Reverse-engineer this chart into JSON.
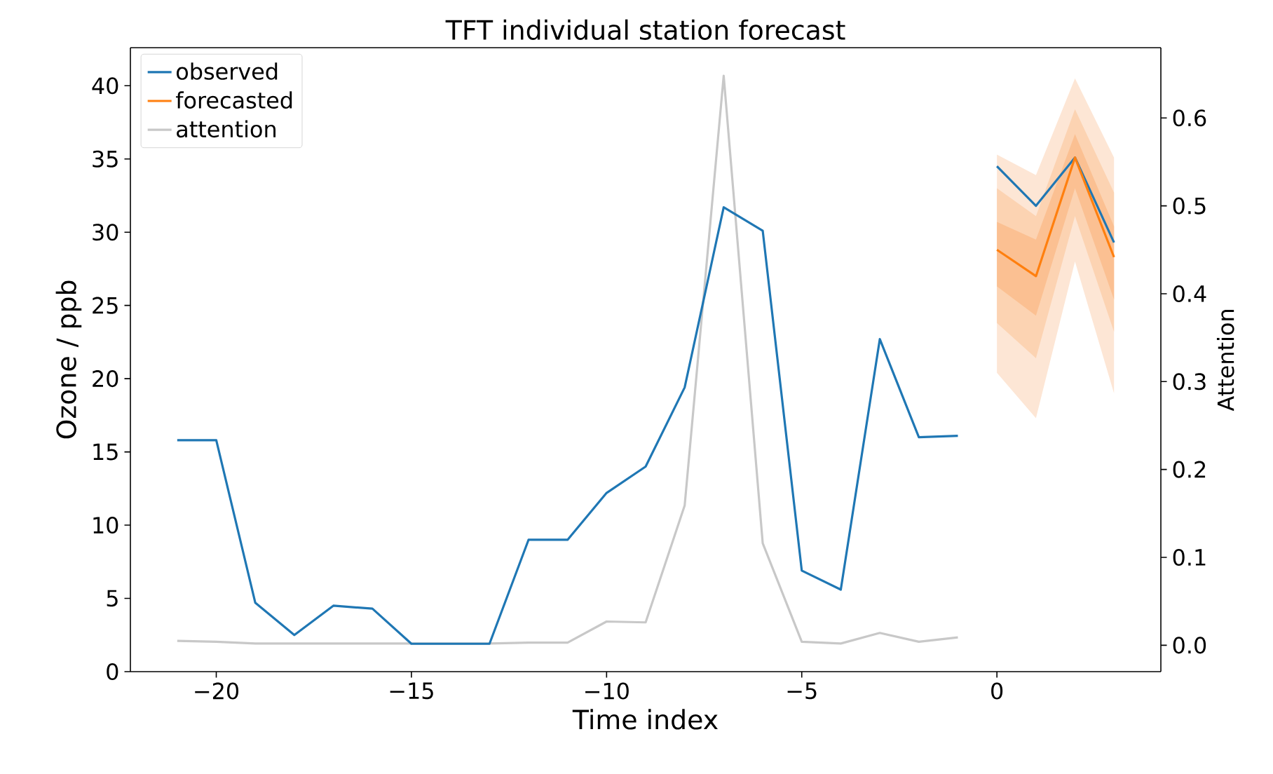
{
  "chart_data": {
    "type": "line",
    "title": "TFT individual station forecast",
    "xlabel": "Time index",
    "ylabel": "Ozone / ppb",
    "y2label": "Attention",
    "xlim": [
      -22.2,
      4.2
    ],
    "xticks": [
      {
        "value": -20,
        "label": "−20"
      },
      {
        "value": -15,
        "label": "−15"
      },
      {
        "value": -10,
        "label": "−10"
      },
      {
        "value": -5,
        "label": "−5"
      },
      0
    ],
    "ylim": [
      0,
      42.6
    ],
    "yticks": [
      0,
      5,
      10,
      15,
      20,
      25,
      30,
      35,
      40
    ],
    "y2lim": [
      -0.03,
      0.68
    ],
    "y2ticks": [
      {
        "value": 0,
        "label": "0.0"
      },
      0.1,
      0.2,
      0.3,
      0.4,
      0.5,
      0.6
    ],
    "legend": "top left",
    "series": [
      {
        "color": "#fde6d5",
        "x": [
          0,
          1,
          2,
          3
        ],
        "values": [
          null,
          null,
          null,
          null
        ],
        "upper": [
          35.3,
          33.9,
          40.5,
          35.1
        ],
        "lower": [
          20.4,
          17.3,
          28.0,
          19.0
        ]
      },
      {
        "color": "#fcd3b2",
        "x": [
          0,
          1,
          2,
          3
        ],
        "values": [
          null,
          null,
          null,
          null
        ],
        "upper": [
          33.0,
          31.1,
          38.4,
          32.7
        ],
        "lower": [
          23.8,
          21.4,
          31.1,
          23.2
        ]
      },
      {
        "color": "#fbc092",
        "x": [
          0,
          1,
          2,
          3
        ],
        "values": [
          null,
          null,
          null,
          null
        ],
        "upper": [
          30.7,
          29.5,
          36.7,
          30.4
        ],
        "lower": [
          26.3,
          24.3,
          33.0,
          25.4
        ]
      },
      {
        "name": "observed",
        "color": "#1f77b4",
        "x": [
          -21,
          -20,
          -19,
          -18,
          -17,
          -16,
          -15,
          -14,
          -13,
          -12,
          -11,
          -10,
          -9,
          -8,
          -7,
          -6,
          -5,
          -4,
          -3,
          -2,
          -1
        ],
        "values": [
          15.8,
          15.8,
          4.7,
          2.5,
          4.5,
          4.3,
          1.9,
          1.9,
          1.9,
          9.0,
          9.0,
          12.2,
          14.0,
          19.4,
          31.7,
          30.1,
          6.9,
          5.6,
          22.7,
          16.0,
          16.1
        ]
      },
      {
        "color": "#1f77b4",
        "x": [
          0,
          1,
          2,
          3
        ],
        "values": [
          34.5,
          31.8,
          35.1,
          29.3
        ]
      },
      {
        "name": "forecasted",
        "color": "#ff7f0e",
        "x": [
          0,
          1,
          2,
          3
        ],
        "values": [
          28.8,
          27.0,
          35.1,
          28.3
        ]
      },
      {
        "name": "attention",
        "color": "#c8c8c8",
        "axis": "y2",
        "x": [
          -21,
          -20,
          -19,
          -18,
          -17,
          -16,
          -15,
          -14,
          -13,
          -12,
          -11,
          -10,
          -9,
          -8,
          -7,
          -6,
          -5,
          -4,
          -3,
          -2,
          -1
        ],
        "values": [
          0.005,
          0.004,
          0.002,
          0.002,
          0.002,
          0.002,
          0.002,
          0.002,
          0.002,
          0.003,
          0.003,
          0.027,
          0.026,
          0.159,
          0.648,
          0.116,
          0.004,
          0.002,
          0.014,
          0.004,
          0.009
        ]
      }
    ]
  }
}
